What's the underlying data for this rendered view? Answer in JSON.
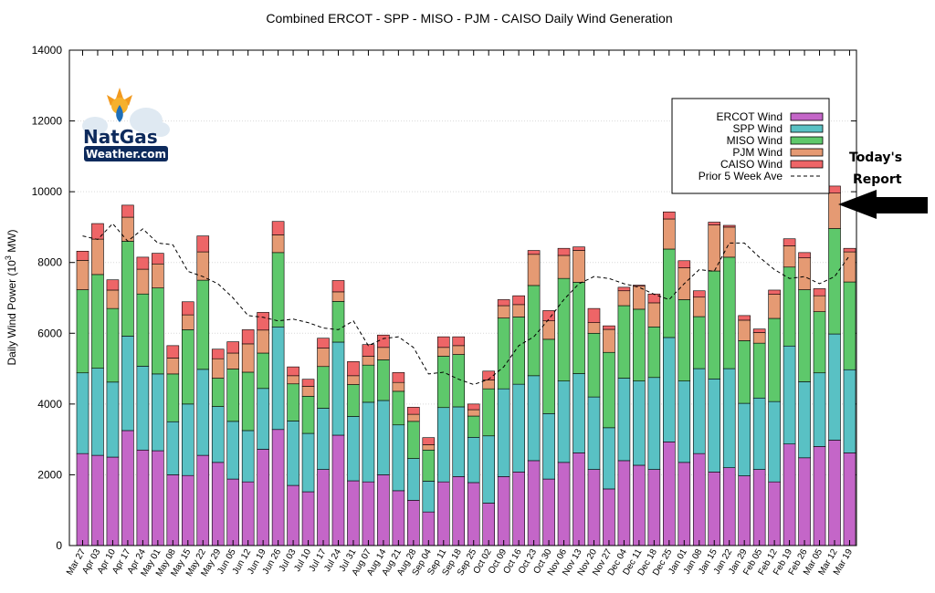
{
  "logo": {
    "name": "NatGas",
    "sub": "Weather.com"
  },
  "annotation": {
    "line1": "Today's",
    "line2": "Report"
  },
  "chart_data": {
    "type": "bar",
    "stacked": true,
    "title": "Combined ERCOT - SPP - MISO - PJM - CAISO Daily Wind Generation",
    "xlabel": "",
    "ylabel_prefix": "Daily Wind Power (10",
    "ylabel_sup": "3",
    "ylabel_suffix": " MW)",
    "ylim": [
      0,
      14000
    ],
    "yticks": [
      0,
      2000,
      4000,
      6000,
      8000,
      10000,
      12000,
      14000
    ],
    "legend_position": "top-right",
    "categories": [
      "Mar 27",
      "Apr 03",
      "Apr 10",
      "Apr 17",
      "Apr 24",
      "May 01",
      "May 08",
      "May 15",
      "May 22",
      "May 29",
      "Jun 05",
      "Jun 12",
      "Jun 19",
      "Jun 26",
      "Jul 03",
      "Jul 10",
      "Jul 17",
      "Jul 24",
      "Jul 31",
      "Aug 07",
      "Aug 14",
      "Aug 21",
      "Aug 28",
      "Sep 04",
      "Sep 11",
      "Sep 18",
      "Sep 25",
      "Oct 02",
      "Oct 09",
      "Oct 16",
      "Oct 23",
      "Oct 30",
      "Nov 06",
      "Nov 13",
      "Nov 20",
      "Nov 27",
      "Dec 04",
      "Dec 11",
      "Dec 18",
      "Dec 25",
      "Jan 01",
      "Jan 08",
      "Jan 15",
      "Jan 22",
      "Jan 29",
      "Feb 05",
      "Feb 12",
      "Feb 19",
      "Feb 26",
      "Mar 05",
      "Mar 12",
      "Mar 19"
    ],
    "label_categories": [
      "Mar 27",
      "Apr 03",
      "Apr 10",
      "Apr 17",
      "Apr 24",
      "May 01",
      "May 08",
      "May 15",
      "May 22",
      "May 29",
      "Jun 05",
      "Jun 12",
      "Jun 19",
      "Jun 26",
      "Jul 03",
      "Jul 10",
      "Jul 17",
      "Jul 24",
      "Jul 31",
      "Aug 07",
      "Aug 14",
      "Aug 21",
      "Aug 28",
      "Sep 04",
      "Sep 11",
      "Sep 18",
      "Sep 25",
      "Oct 02",
      "Oct 09",
      "Oct 16",
      "Oct 23",
      "Oct 30",
      "Nov 06",
      "Nov 13",
      "Nov 20",
      "Nov 27",
      "Dec 04",
      "Dec 11",
      "Dec 18",
      "Dec 25",
      "Jan 01",
      "Jan 08",
      "Jan 15",
      "Jan 22",
      "Jan 29",
      "Feb 05",
      "Feb 12",
      "Feb 19",
      "Feb 26",
      "Mar 05",
      "Mar 12",
      "Mar 19"
    ],
    "bars_per_category": 1,
    "series": [
      {
        "name": "ERCOT Wind",
        "color": "#c466c8",
        "values": [
          2600,
          2550,
          2500,
          3250,
          2700,
          2680,
          2000,
          1980,
          2550,
          2350,
          1880,
          1800,
          2720,
          3280,
          1700,
          1520,
          2150,
          3120,
          1830,
          1800,
          2000,
          1550,
          1280,
          950,
          1800,
          1950,
          1780,
          1200,
          1950,
          2080,
          2400,
          1880,
          2350,
          2620,
          2150,
          1600,
          2400,
          2270,
          2150,
          2930,
          2350,
          2600,
          2080,
          2200,
          1970,
          2150,
          1800,
          2870,
          2480,
          2800,
          2980,
          2620
        ]
      },
      {
        "name": "SPP Wind",
        "color": "#59c1c4",
        "values": [
          2280,
          2460,
          2120,
          2670,
          2370,
          2170,
          1500,
          2020,
          2430,
          1580,
          1630,
          1450,
          1720,
          2900,
          1820,
          1650,
          1730,
          2630,
          1820,
          2250,
          2100,
          1860,
          1180,
          870,
          2100,
          1970,
          1280,
          1900,
          2480,
          2480,
          2400,
          1850,
          2300,
          2240,
          2050,
          1730,
          2330,
          2380,
          2600,
          2950,
          2300,
          2400,
          2630,
          2800,
          2050,
          2020,
          2270,
          2770,
          2150,
          2080,
          3000,
          2350
        ]
      },
      {
        "name": "MISO Wind",
        "color": "#5ec86b",
        "values": [
          2350,
          2650,
          2080,
          2680,
          2040,
          2430,
          1350,
          2100,
          2520,
          800,
          1480,
          1650,
          1000,
          2100,
          1050,
          1050,
          1180,
          1150,
          900,
          1050,
          1150,
          950,
          1050,
          880,
          1450,
          1480,
          600,
          1330,
          2000,
          1900,
          2550,
          2100,
          2900,
          2580,
          1800,
          2130,
          2050,
          2030,
          1430,
          2500,
          2300,
          1470,
          3050,
          3150,
          1770,
          1550,
          2350,
          2230,
          2600,
          1730,
          2980,
          2480
        ]
      },
      {
        "name": "PJM Wind",
        "color": "#e59a73",
        "values": [
          830,
          1000,
          520,
          680,
          700,
          680,
          450,
          420,
          800,
          550,
          450,
          800,
          650,
          500,
          230,
          280,
          520,
          270,
          250,
          250,
          350,
          250,
          200,
          150,
          250,
          250,
          180,
          250,
          350,
          350,
          880,
          520,
          650,
          900,
          300,
          650,
          420,
          650,
          680,
          850,
          900,
          550,
          1300,
          850,
          580,
          300,
          680,
          600,
          900,
          450,
          1000,
          850
        ]
      },
      {
        "name": "CAISO Wind",
        "color": "#ee6567",
        "values": [
          260,
          440,
          290,
          340,
          340,
          300,
          350,
          370,
          450,
          270,
          320,
          400,
          500,
          380,
          250,
          200,
          280,
          320,
          400,
          330,
          350,
          280,
          200,
          200,
          300,
          250,
          160,
          250,
          170,
          250,
          110,
          290,
          200,
          100,
          400,
          100,
          100,
          30,
          250,
          200,
          200,
          180,
          80,
          50,
          130,
          100,
          120,
          200,
          150,
          200,
          200,
          100
        ]
      }
    ],
    "prior_5_week_ave": {
      "name": "Prior 5 Week Ave",
      "values": [
        8750,
        8650,
        9100,
        8600,
        8950,
        8550,
        8500,
        7750,
        7600,
        7400,
        7000,
        6500,
        6450,
        6350,
        6400,
        6300,
        6150,
        6100,
        6350,
        5650,
        5850,
        5900,
        5600,
        4850,
        4900,
        4700,
        4550,
        4700,
        5050,
        5650,
        5900,
        6400,
        6950,
        7400,
        7600,
        7550,
        7400,
        7300,
        7100,
        6950,
        7400,
        7800,
        7750,
        8550,
        8550,
        8150,
        7800,
        7550,
        7600,
        7400,
        7600,
        8200
      ]
    }
  }
}
